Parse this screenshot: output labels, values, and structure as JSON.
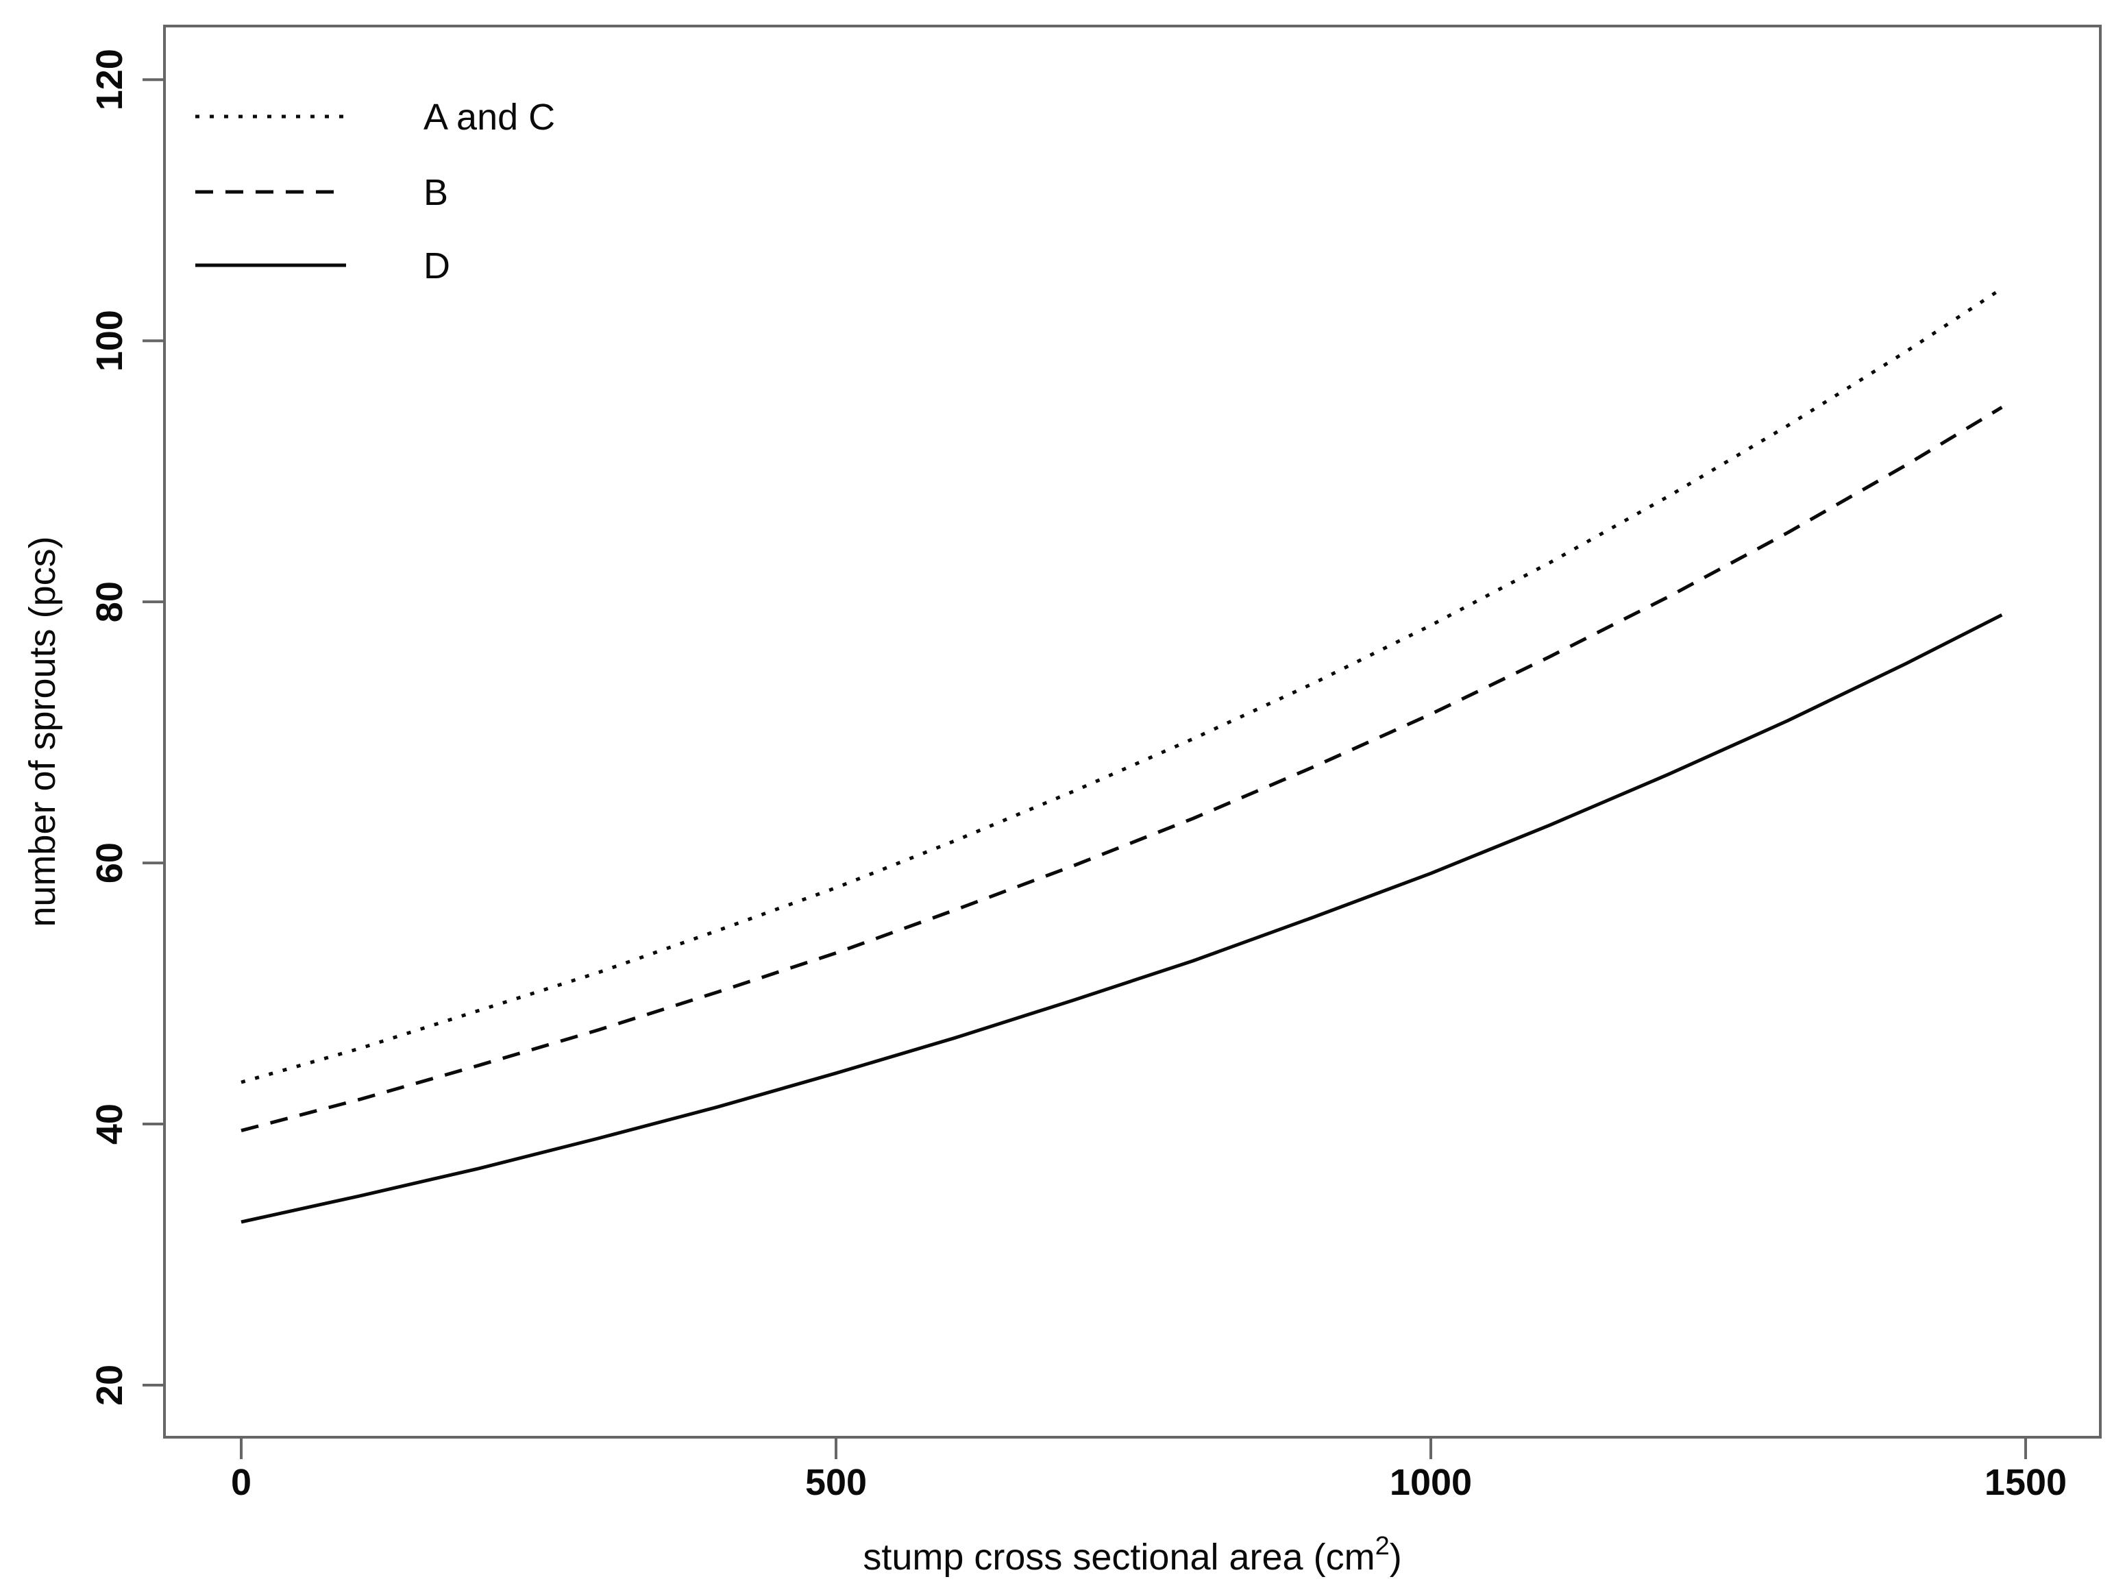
{
  "chart_data": {
    "type": "line",
    "title": "",
    "xlabel": "stump cross sectional area (cm²)",
    "xlabel_parts": {
      "prefix": "stump cross sectional area (cm",
      "sup": "2",
      "suffix": ")"
    },
    "ylabel": "number of sprouts (pcs)",
    "xlim": [
      -65,
      1565
    ],
    "ylim": [
      16,
      124
    ],
    "x_ticks": [
      0,
      500,
      1000,
      1500
    ],
    "y_ticks": [
      20,
      40,
      60,
      80,
      100,
      120
    ],
    "grid": false,
    "legend_position": "top-left-inside",
    "x": [
      0,
      100,
      200,
      300,
      400,
      500,
      600,
      700,
      800,
      900,
      1000,
      1100,
      1200,
      1300,
      1400,
      1480
    ],
    "series": [
      {
        "name": "A and C",
        "style": "dotted",
        "values": [
          43.2,
          45.8,
          48.7,
          51.6,
          54.8,
          58.1,
          61.7,
          65.5,
          69.5,
          73.7,
          78.2,
          83.0,
          88.1,
          93.5,
          99.2,
          104.0
        ]
      },
      {
        "name": "B",
        "style": "dashed",
        "values": [
          39.5,
          41.9,
          44.5,
          47.2,
          50.1,
          53.1,
          56.4,
          59.8,
          63.4,
          67.3,
          71.4,
          75.8,
          80.4,
          85.3,
          90.5,
          94.9
        ]
      },
      {
        "name": "D",
        "style": "solid",
        "values": [
          32.5,
          34.5,
          36.6,
          38.9,
          41.3,
          43.9,
          46.6,
          49.5,
          52.5,
          55.8,
          59.2,
          62.9,
          66.8,
          70.9,
          75.3,
          79.0
        ]
      }
    ],
    "colors": {
      "line": "#0a0a0a",
      "frame": "#666666",
      "text": "#0a0a0a",
      "background": "#ffffff"
    }
  }
}
